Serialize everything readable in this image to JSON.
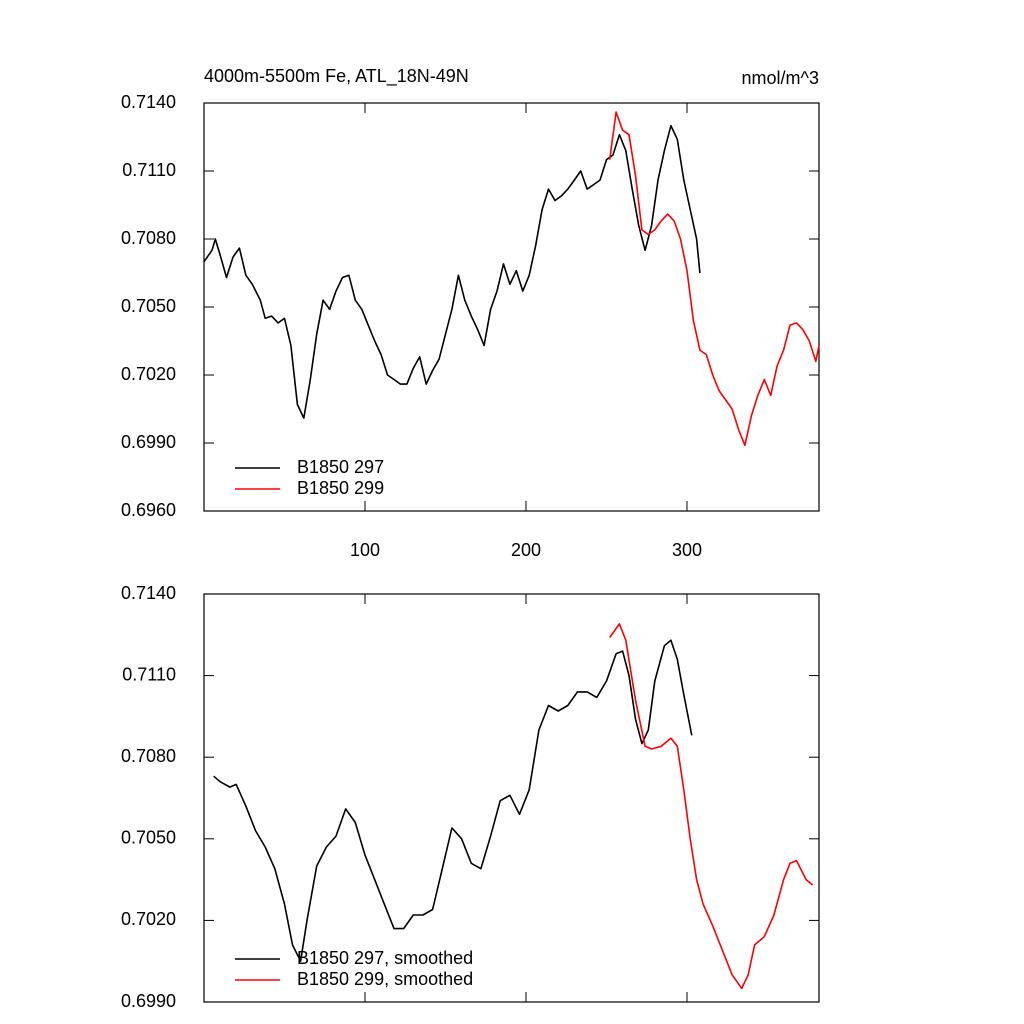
{
  "chart_data": [
    {
      "type": "line",
      "title": "4000m-5500m Fe, ATL_18N-49N",
      "units": "nmol/m^3",
      "xlim": [
        0,
        382
      ],
      "xticks": [
        100,
        200,
        300
      ],
      "show_xtick_labels": true,
      "ylim": [
        0.696,
        0.714
      ],
      "yticks": [
        {
          "value": 0.714,
          "label": "0.7140"
        },
        {
          "value": 0.711,
          "label": "0.7110"
        },
        {
          "value": 0.708,
          "label": "0.7080"
        },
        {
          "value": 0.705,
          "label": "0.7050"
        },
        {
          "value": 0.702,
          "label": "0.7020"
        },
        {
          "value": 0.699,
          "label": "0.6990"
        },
        {
          "value": 0.696,
          "label": "0.6960"
        }
      ],
      "legend": "lower left",
      "series": [
        {
          "name": "B1850 297",
          "color": "#000000",
          "x": [
            0,
            5,
            7,
            10,
            14,
            18,
            22,
            26,
            30,
            35,
            38,
            42,
            46,
            50,
            54,
            58,
            62,
            66,
            70,
            74,
            78,
            82,
            86,
            90,
            94,
            98,
            102,
            106,
            110,
            114,
            118,
            122,
            126,
            130,
            134,
            138,
            142,
            146,
            150,
            154,
            158,
            162,
            166,
            170,
            174,
            178,
            182,
            186,
            190,
            194,
            198,
            202,
            206,
            210,
            214,
            218,
            222,
            226,
            230,
            234,
            238,
            242,
            246,
            250,
            254,
            258,
            262,
            266,
            270,
            274,
            278,
            282,
            286,
            290,
            294,
            298,
            302,
            306,
            308
          ],
          "values": [
            0.707,
            0.7075,
            0.708,
            0.7073,
            0.7063,
            0.7072,
            0.7076,
            0.7064,
            0.706,
            0.7053,
            0.7045,
            0.7046,
            0.7043,
            0.7045,
            0.7033,
            0.7007,
            0.7001,
            0.7018,
            0.7038,
            0.7053,
            0.7049,
            0.7057,
            0.7063,
            0.7064,
            0.7053,
            0.7049,
            0.7042,
            0.7035,
            0.7029,
            0.702,
            0.7018,
            0.7016,
            0.7016,
            0.7023,
            0.7028,
            0.7016,
            0.7022,
            0.7027,
            0.7038,
            0.7049,
            0.7064,
            0.7053,
            0.7046,
            0.704,
            0.7033,
            0.7049,
            0.7057,
            0.7069,
            0.706,
            0.7066,
            0.7057,
            0.7064,
            0.7077,
            0.7093,
            0.7102,
            0.7097,
            0.7099,
            0.7102,
            0.7106,
            0.711,
            0.7102,
            0.7104,
            0.7106,
            0.7115,
            0.7117,
            0.7126,
            0.7119,
            0.7102,
            0.7086,
            0.7075,
            0.7086,
            0.7106,
            0.7119,
            0.713,
            0.7124,
            0.7106,
            0.7093,
            0.708,
            0.7065
          ]
        },
        {
          "name": "B1850 299",
          "color": "#ff0000",
          "x": [
            252,
            256,
            260,
            264,
            268,
            272,
            276,
            280,
            284,
            288,
            292,
            296,
            300,
            304,
            308,
            312,
            316,
            320,
            324,
            328,
            332,
            336,
            340,
            344,
            348,
            352,
            356,
            360,
            364,
            368,
            372,
            376,
            380,
            382
          ],
          "values": [
            0.7115,
            0.7136,
            0.7128,
            0.7126,
            0.7108,
            0.7084,
            0.7082,
            0.7084,
            0.7088,
            0.7091,
            0.7088,
            0.708,
            0.7066,
            0.7044,
            0.7031,
            0.7029,
            0.702,
            0.7013,
            0.7009,
            0.7005,
            0.6996,
            0.6989,
            0.7002,
            0.7011,
            0.7018,
            0.7011,
            0.7024,
            0.7031,
            0.7042,
            0.7043,
            0.704,
            0.7035,
            0.7026,
            0.7033
          ]
        }
      ]
    },
    {
      "type": "line",
      "xlim": [
        0,
        382
      ],
      "xticks": [
        100,
        200,
        300
      ],
      "show_xtick_labels": false,
      "ylim": [
        0.699,
        0.714
      ],
      "yticks": [
        {
          "value": 0.714,
          "label": "0.7140"
        },
        {
          "value": 0.711,
          "label": "0.7110"
        },
        {
          "value": 0.708,
          "label": "0.7080"
        },
        {
          "value": 0.705,
          "label": "0.7050"
        },
        {
          "value": 0.702,
          "label": "0.7020"
        },
        {
          "value": 0.699,
          "label": "0.6990"
        }
      ],
      "legend": "lower left",
      "series": [
        {
          "name": "B1850 297, smoothed",
          "color": "#000000",
          "x": [
            6,
            10,
            16,
            20,
            26,
            32,
            38,
            44,
            50,
            55,
            60,
            64,
            70,
            76,
            82,
            88,
            94,
            100,
            106,
            112,
            118,
            124,
            130,
            136,
            142,
            148,
            154,
            160,
            166,
            172,
            178,
            184,
            190,
            196,
            202,
            208,
            214,
            220,
            226,
            232,
            238,
            244,
            250,
            256,
            260,
            264,
            268,
            272,
            276,
            280,
            286,
            290,
            294,
            298,
            303
          ],
          "values": [
            0.7073,
            0.7071,
            0.7069,
            0.707,
            0.7062,
            0.7053,
            0.7047,
            0.7039,
            0.7026,
            0.7011,
            0.7005,
            0.702,
            0.704,
            0.7047,
            0.7051,
            0.7061,
            0.7056,
            0.7044,
            0.7035,
            0.7026,
            0.7017,
            0.7017,
            0.7022,
            0.7022,
            0.7024,
            0.7039,
            0.7054,
            0.705,
            0.7041,
            0.7039,
            0.7051,
            0.7064,
            0.7066,
            0.7059,
            0.7068,
            0.709,
            0.7099,
            0.7097,
            0.7099,
            0.7104,
            0.7104,
            0.7102,
            0.7108,
            0.7118,
            0.7119,
            0.711,
            0.7094,
            0.7085,
            0.709,
            0.7108,
            0.7121,
            0.7123,
            0.7116,
            0.7103,
            0.7088
          ]
        },
        {
          "name": "B1850 299, smoothed",
          "color": "#ff0000",
          "x": [
            252,
            258,
            262,
            268,
            274,
            278,
            284,
            290,
            294,
            298,
            302,
            306,
            310,
            316,
            322,
            328,
            334,
            338,
            342,
            348,
            354,
            360,
            364,
            368,
            374,
            378
          ],
          "values": [
            0.7124,
            0.7129,
            0.7123,
            0.7101,
            0.7084,
            0.7083,
            0.7084,
            0.7087,
            0.7084,
            0.7068,
            0.705,
            0.7035,
            0.7026,
            0.7018,
            0.7009,
            0.7,
            0.6995,
            0.7,
            0.7011,
            0.7014,
            0.7022,
            0.7035,
            0.7041,
            0.7042,
            0.7035,
            0.7033
          ]
        }
      ]
    }
  ]
}
